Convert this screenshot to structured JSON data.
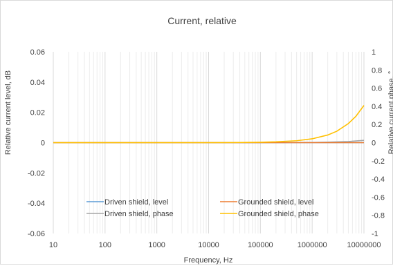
{
  "chart_data": {
    "type": "line",
    "title": "Current, relative",
    "xlabel": "Frequency, Hz",
    "ylabel": "Relative current level, dB",
    "y2label": "Relative current phase, °",
    "x_scale": "log",
    "xlim": [
      10,
      10000000
    ],
    "ylim": [
      -0.06,
      0.06
    ],
    "y2lim": [
      -1,
      1
    ],
    "x_ticks": [
      10,
      100,
      1000,
      10000,
      100000,
      1000000,
      10000000
    ],
    "x_tick_labels": [
      "10",
      "100",
      "1000",
      "10000",
      "100000",
      "1000000",
      "10000000"
    ],
    "y_ticks": [
      0.06,
      0.04,
      0.02,
      0,
      -0.02,
      -0.04,
      -0.06
    ],
    "y_tick_labels": [
      "0.06",
      "0.04",
      "0.02",
      "0",
      "-0.02",
      "-0.04",
      "-0.06"
    ],
    "y2_ticks": [
      1,
      0.8,
      0.6,
      0.4,
      0.2,
      0,
      -0.2,
      -0.4,
      -0.6,
      -0.8,
      -1
    ],
    "y2_tick_labels": [
      "1",
      "0.8",
      "0.6",
      "0.4",
      "0.2",
      "0",
      "-0.2",
      "-0.4",
      "-0.6",
      "-0.8",
      "-1"
    ],
    "grid": "vertical minor and major gridlines, log scale",
    "legend_position": "bottom-center inside plot",
    "series": [
      {
        "name": "Driven shield, level",
        "axis": "left",
        "color": "#5b9bd5",
        "x": [
          10,
          100,
          1000,
          10000,
          100000,
          1000000,
          10000000
        ],
        "y": [
          0,
          0,
          0,
          0,
          0,
          0,
          0
        ]
      },
      {
        "name": "Grounded shield, level",
        "axis": "left",
        "color": "#ed7d31",
        "x": [
          10,
          100,
          1000,
          10000,
          100000,
          1000000,
          10000000
        ],
        "y": [
          0,
          0,
          0,
          0,
          0,
          0,
          0
        ]
      },
      {
        "name": "Driven shield, phase",
        "axis": "right",
        "color": "#a5a5a5",
        "x": [
          10,
          100,
          1000,
          10000,
          100000,
          1000000,
          2000000,
          5000000,
          10000000
        ],
        "y": [
          0,
          0,
          0,
          0,
          0,
          0.002,
          0.005,
          0.012,
          0.025
        ]
      },
      {
        "name": "Grounded shield, phase",
        "axis": "right",
        "color": "#ffc000",
        "x": [
          10,
          100,
          1000,
          10000,
          30000,
          100000,
          200000,
          500000,
          1000000,
          2000000,
          3000000,
          5000000,
          7000000,
          10000000
        ],
        "y": [
          0,
          0,
          0,
          0,
          0.001,
          0.004,
          0.009,
          0.021,
          0.042,
          0.084,
          0.126,
          0.21,
          0.29,
          0.41
        ]
      }
    ]
  }
}
